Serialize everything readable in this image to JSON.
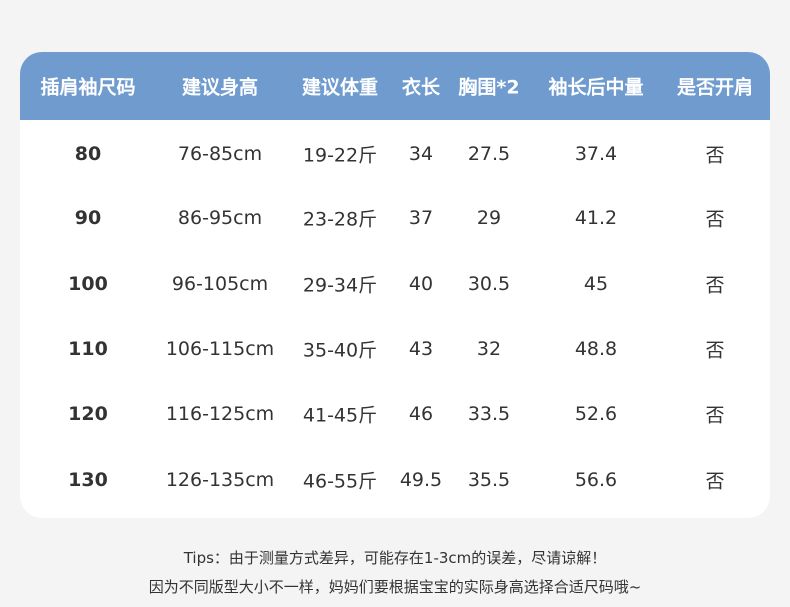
{
  "table": {
    "headers": [
      "插肩袖尺码",
      "建议身高",
      "建议体重",
      "衣长",
      "胸围*2",
      "袖长后中量",
      "是否开肩"
    ],
    "rows": [
      [
        "80",
        "76-85cm",
        "19-22斤",
        "34",
        "27.5",
        "37.4",
        "否"
      ],
      [
        "90",
        "86-95cm",
        "23-28斤",
        "37",
        "29",
        "41.2",
        "否"
      ],
      [
        "100",
        "96-105cm",
        "29-34斤",
        "40",
        "30.5",
        "45",
        "否"
      ],
      [
        "110",
        "106-115cm",
        "35-40斤",
        "43",
        "32",
        "48.8",
        "否"
      ],
      [
        "120",
        "116-125cm",
        "41-45斤",
        "46",
        "33.5",
        "52.6",
        "否"
      ],
      [
        "130",
        "126-135cm",
        "46-55斤",
        "49.5",
        "35.5",
        "56.6",
        "否"
      ]
    ]
  },
  "tips": {
    "line1": "Tips：由于测量方式差异，可能存在1-3cm的误差，尽请谅解！",
    "line2": "因为不同版型大小不一样，妈妈们要根据宝宝的实际身高选择合适尺码哦~"
  },
  "colors": {
    "header_bg": "#6f9bcf",
    "page_bg": "#f4f4f4"
  }
}
